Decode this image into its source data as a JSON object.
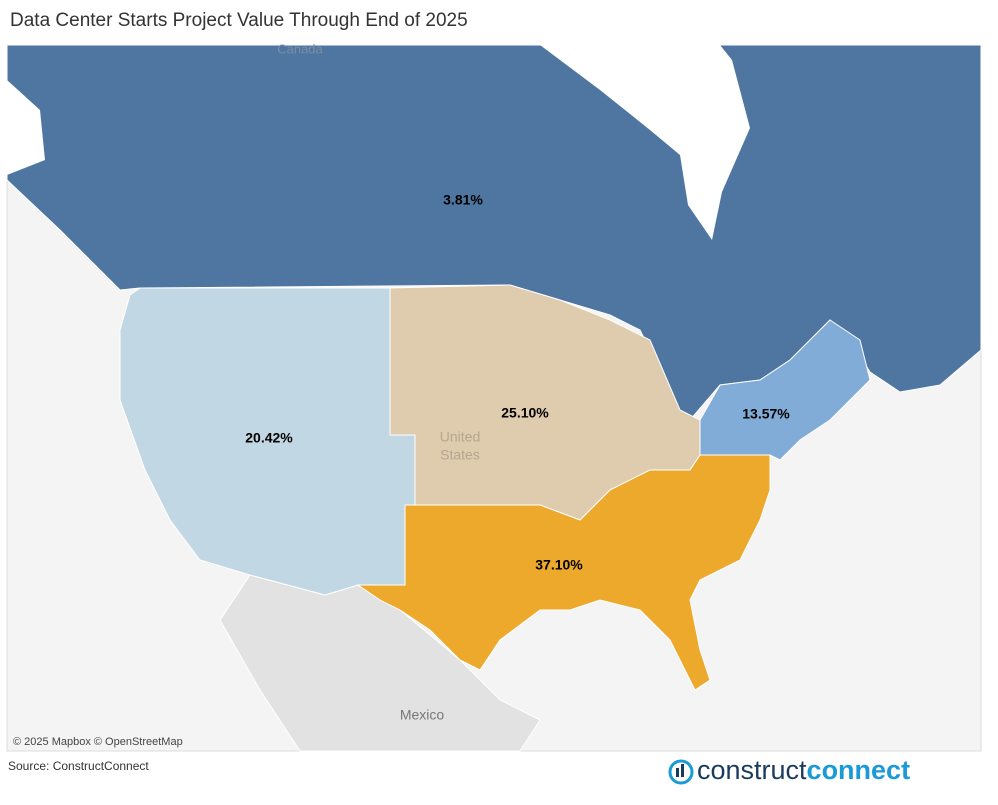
{
  "chart_data": {
    "type": "map",
    "title": "Data Center Starts Project Value Through End of 2025",
    "values": [
      3.81,
      20.42,
      25.1,
      13.57,
      37.1
    ],
    "value_labels": [
      "3.81%",
      "20.42%",
      "25.10%",
      "13.57%",
      "37.10%"
    ],
    "colors": [
      "#4e76a0",
      "#c2d7e4",
      "#dfcbae",
      "#82acd8",
      "#eca92b"
    ]
  },
  "map_labels": [
    "Canada",
    "United",
    "States",
    "Mexico"
  ],
  "attribution": "© 2025 Mapbox © OpenStreetMap",
  "source": "Source: ConstructConnect",
  "logo": [
    "construct",
    "connect"
  ]
}
